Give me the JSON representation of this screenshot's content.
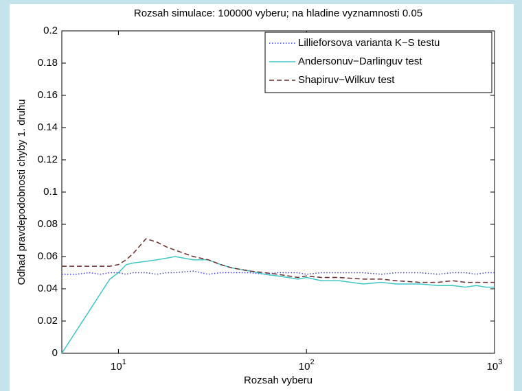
{
  "chart_data": {
    "type": "line",
    "subtitle": "Rozsah simulace: 100000 vyberu; na hladine vyznamnosti 0.05",
    "x_label": "Rozsah vyberu",
    "y_label": "Odhad pravdepodobnosti chyby 1. druhu",
    "x_scale": "log",
    "xlim": [
      5,
      1000
    ],
    "ylim": [
      0,
      0.2
    ],
    "xticks": [
      {
        "value": 10,
        "label": "10",
        "exponent": "1"
      },
      {
        "value": 100,
        "label": "10",
        "exponent": "2"
      },
      {
        "value": 1000,
        "label": "10",
        "exponent": "3"
      }
    ],
    "yticks": [
      0,
      0.02,
      0.04,
      0.06,
      0.08,
      0.1,
      0.12,
      0.14,
      0.16,
      0.18,
      0.2
    ],
    "legend": "upper right",
    "x": [
      5,
      6,
      7,
      8,
      9,
      10,
      11,
      12,
      14,
      16,
      18,
      20,
      25,
      30,
      35,
      40,
      50,
      60,
      70,
      80,
      90,
      100,
      120,
      150,
      200,
      250,
      300,
      400,
      500,
      600,
      700,
      800,
      900,
      1000
    ],
    "series": [
      {
        "name": "Lillieforsova varianta K−S testu",
        "color": "#3a3ae8",
        "dash": "dotted",
        "values": [
          0.049,
          0.049,
          0.05,
          0.049,
          0.05,
          0.05,
          0.049,
          0.05,
          0.05,
          0.049,
          0.05,
          0.05,
          0.051,
          0.049,
          0.05,
          0.05,
          0.05,
          0.049,
          0.05,
          0.05,
          0.05,
          0.049,
          0.05,
          0.05,
          0.05,
          0.049,
          0.05,
          0.05,
          0.049,
          0.05,
          0.05,
          0.049,
          0.05,
          0.05
        ]
      },
      {
        "name": "Andersonuv−Darlinguv test",
        "color": "#3cc6c6",
        "dash": "solid",
        "values": [
          0,
          0.0143,
          0.0263,
          0.0368,
          0.046,
          0.05,
          0.055,
          0.056,
          0.057,
          0.058,
          0.059,
          0.06,
          0.058,
          0.058,
          0.055,
          0.053,
          0.051,
          0.049,
          0.048,
          0.047,
          0.046,
          0.047,
          0.045,
          0.045,
          0.043,
          0.044,
          0.043,
          0.043,
          0.042,
          0.042,
          0.041,
          0.042,
          0.041,
          0.041
        ]
      },
      {
        "name": "Shapiruv−Wilkuv test",
        "color": "#6b2a2a",
        "dash": "dashed",
        "values": [
          0.054,
          0.054,
          0.054,
          0.054,
          0.054,
          0.055,
          0.058,
          0.062,
          0.071,
          0.069,
          0.066,
          0.064,
          0.06,
          0.058,
          0.055,
          0.053,
          0.051,
          0.05,
          0.049,
          0.048,
          0.047,
          0.048,
          0.047,
          0.047,
          0.046,
          0.046,
          0.045,
          0.044,
          0.044,
          0.045,
          0.044,
          0.044,
          0.044,
          0.044
        ]
      }
    ]
  }
}
